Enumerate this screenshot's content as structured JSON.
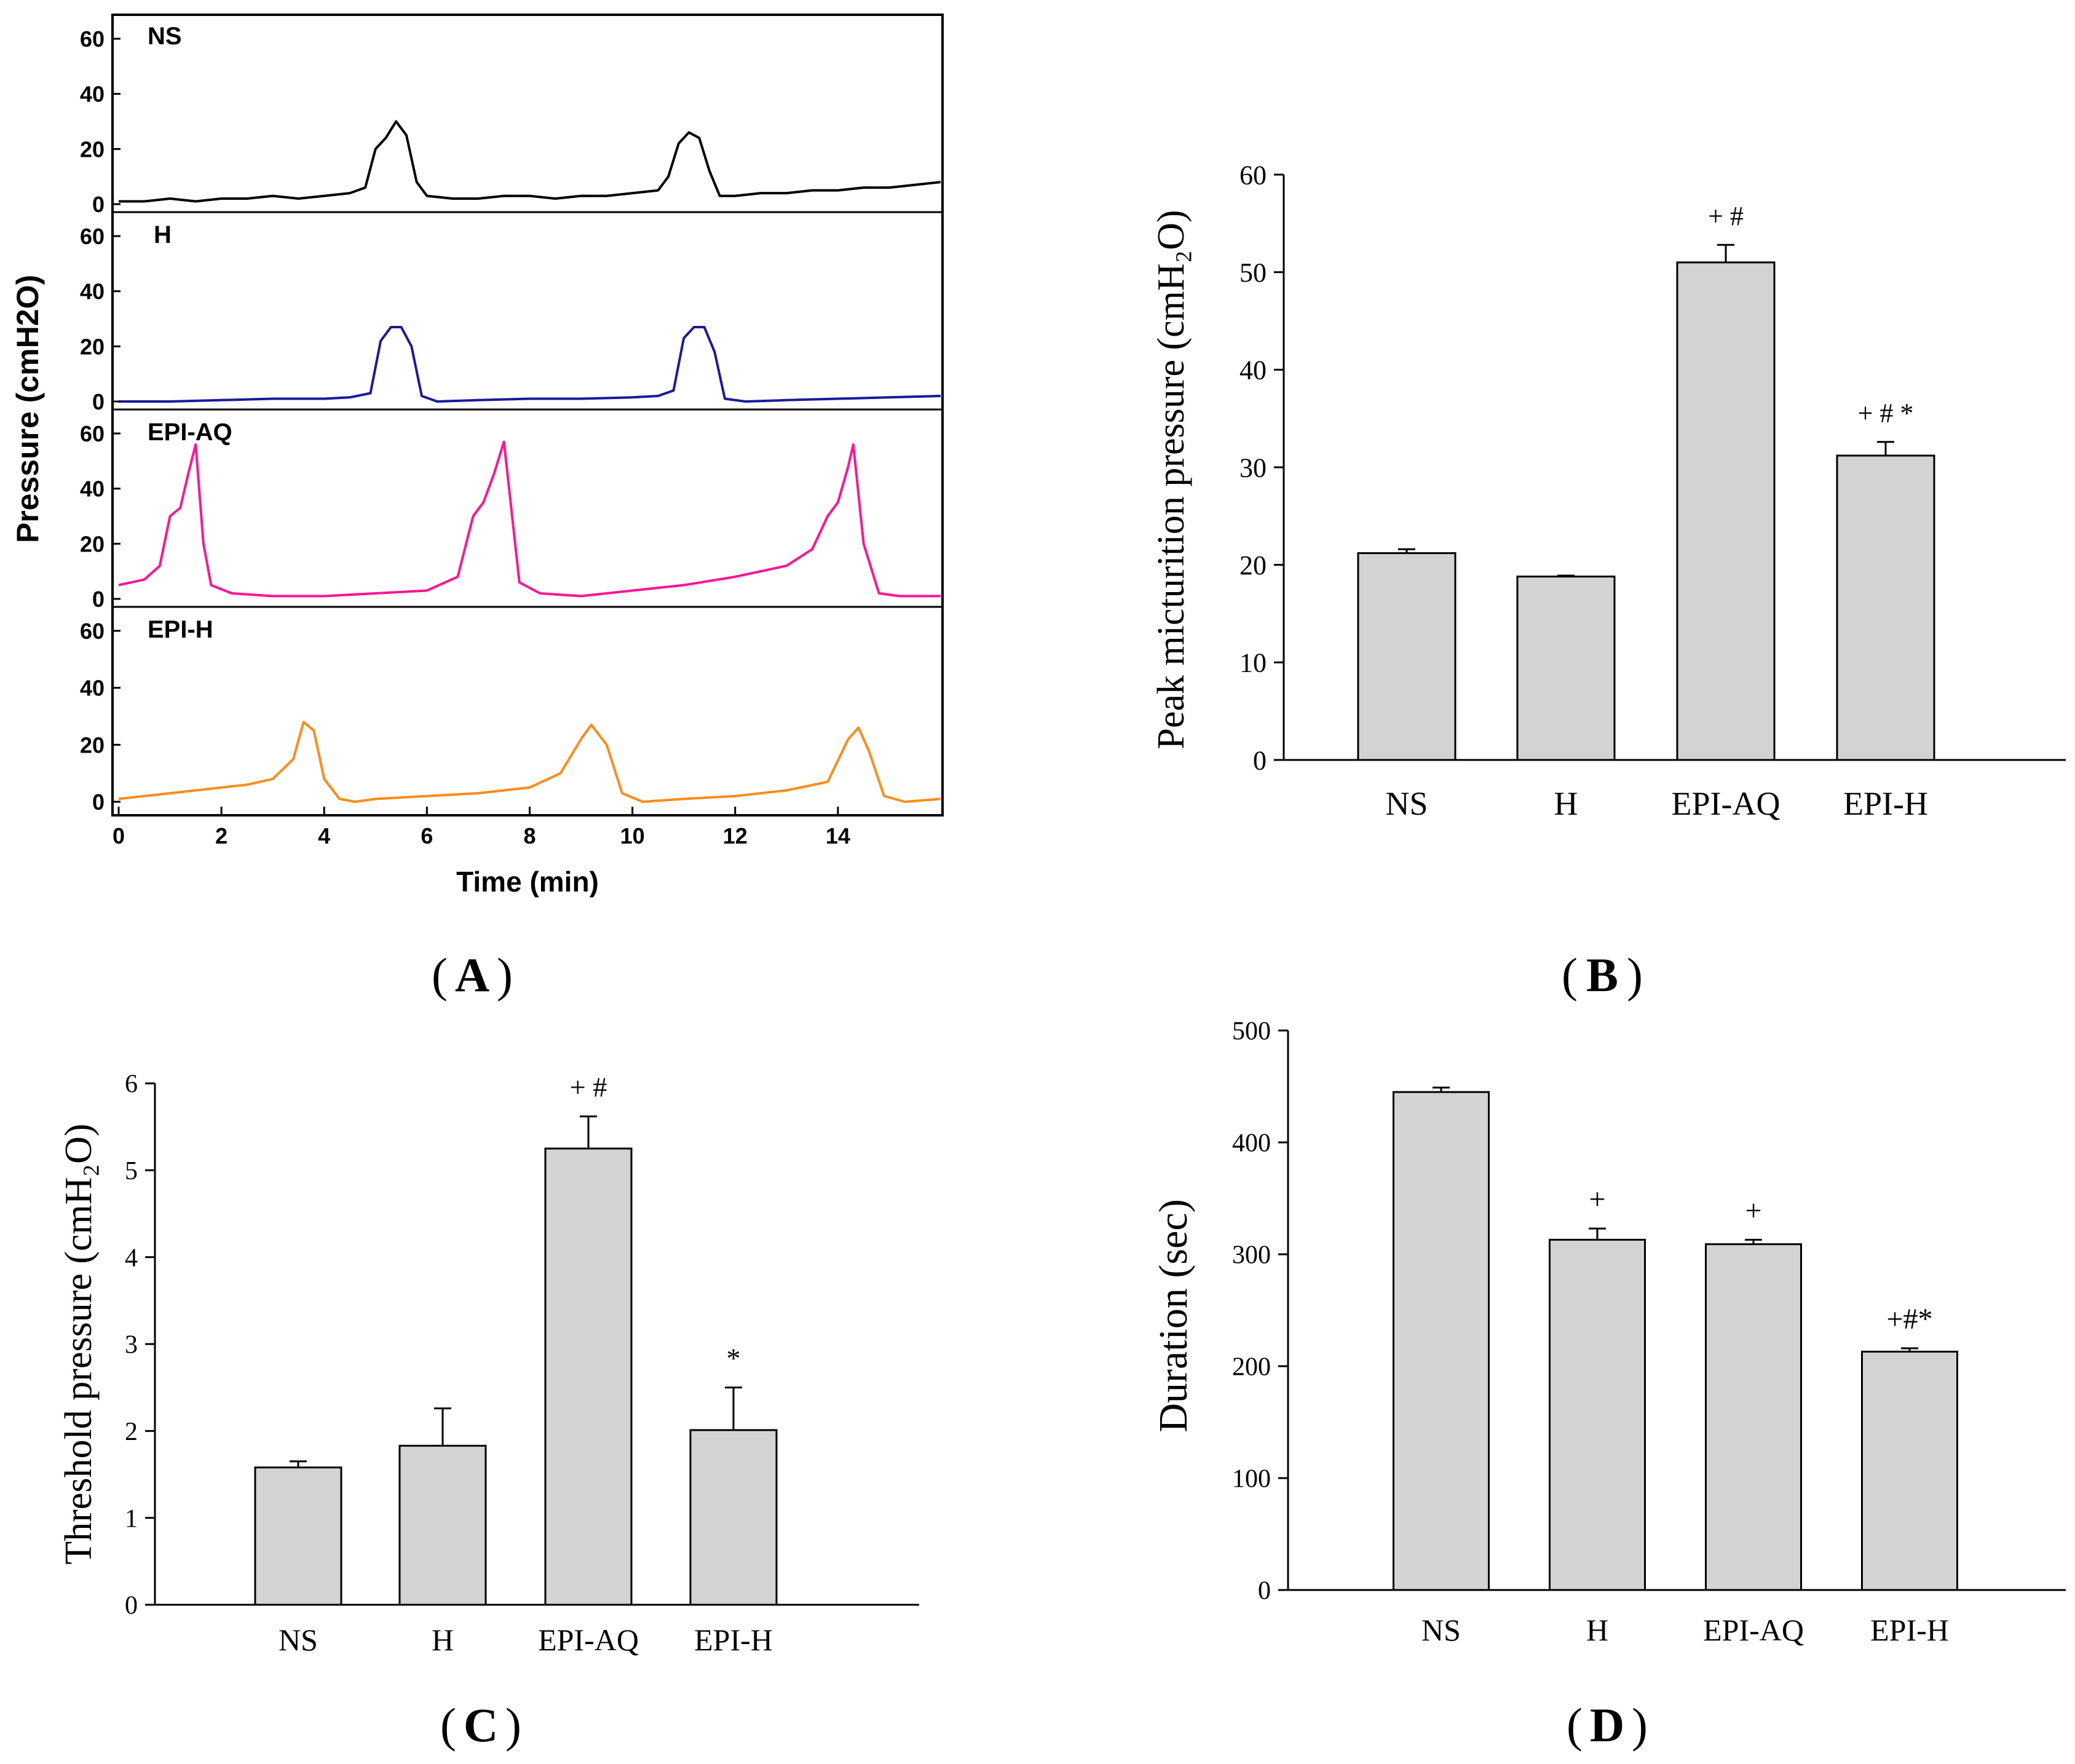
{
  "colors": {
    "axis": "#000000",
    "bar_fill": "#d3d3d3",
    "bar_stroke": "#000000",
    "trace_NS": "#000000",
    "trace_H": "#1a1a9a",
    "trace_EPI_AQ": "#ff1493",
    "trace_EPI_H": "#ff8c1a",
    "background": "#ffffff"
  },
  "panel_labels": {
    "A": "A",
    "B": "B",
    "C": "C",
    "D": "D"
  },
  "chart_data": [
    {
      "id": "A",
      "type": "line",
      "title": "",
      "xlabel": "Time (min)",
      "ylabel": "Pressure (cmH2O)",
      "xlim": [
        0,
        16
      ],
      "xticks": [
        "0",
        "2",
        "4",
        "6",
        "8",
        "10",
        "12",
        "14"
      ],
      "yticks": [
        "0",
        "20",
        "40",
        "60"
      ],
      "ylim": [
        0,
        65
      ],
      "grid": false,
      "series": [
        {
          "name": "NS",
          "color": "#000000",
          "x": [
            0,
            0.5,
            1,
            1.5,
            2,
            2.5,
            3,
            3.5,
            4,
            4.5,
            4.8,
            5.0,
            5.2,
            5.4,
            5.6,
            5.8,
            6.0,
            6.5,
            7,
            7.5,
            8,
            8.5,
            9,
            9.5,
            10,
            10.5,
            10.7,
            10.9,
            11.1,
            11.3,
            11.5,
            11.7,
            12,
            12.5,
            13,
            13.5,
            14,
            14.5,
            15,
            15.5,
            16
          ],
          "values": [
            1,
            1,
            2,
            1,
            2,
            2,
            3,
            2,
            3,
            4,
            6,
            20,
            24,
            30,
            25,
            8,
            3,
            2,
            2,
            3,
            3,
            2,
            3,
            3,
            4,
            5,
            10,
            22,
            26,
            24,
            12,
            3,
            3,
            4,
            4,
            5,
            5,
            6,
            6,
            7,
            8
          ]
        },
        {
          "name": "H",
          "color": "#1a1a9a",
          "x": [
            0,
            1,
            2,
            3,
            4,
            4.5,
            4.9,
            5.1,
            5.3,
            5.5,
            5.7,
            5.9,
            6.2,
            7,
            8,
            9,
            10,
            10.5,
            10.8,
            11.0,
            11.2,
            11.4,
            11.6,
            11.8,
            12.2,
            13,
            14,
            15,
            16
          ],
          "values": [
            0,
            0,
            0.5,
            1,
            1,
            1.5,
            3,
            22,
            27,
            27,
            20,
            2,
            0,
            0.5,
            1,
            1,
            1.5,
            2,
            4,
            23,
            27,
            27,
            18,
            1,
            0,
            0.5,
            1,
            1.5,
            2
          ]
        },
        {
          "name": "EPI-AQ",
          "color": "#ff1493",
          "x": [
            0,
            0.5,
            0.8,
            1.0,
            1.2,
            1.35,
            1.5,
            1.65,
            1.8,
            2.2,
            3,
            4,
            5,
            6,
            6.6,
            6.9,
            7.1,
            7.3,
            7.5,
            7.6,
            7.8,
            8.2,
            9,
            10,
            11,
            12,
            13,
            13.5,
            13.8,
            14.0,
            14.2,
            14.3,
            14.5,
            14.8,
            15.2,
            16
          ],
          "values": [
            5,
            7,
            12,
            30,
            33,
            45,
            56,
            20,
            5,
            2,
            1,
            1,
            2,
            3,
            8,
            30,
            35,
            45,
            57,
            40,
            6,
            2,
            1,
            3,
            5,
            8,
            12,
            18,
            30,
            35,
            48,
            56,
            20,
            2,
            1,
            1
          ]
        },
        {
          "name": "EPI-H",
          "color": "#ff8c1a",
          "x": [
            0,
            0.5,
            1,
            1.5,
            2,
            2.5,
            3,
            3.4,
            3.6,
            3.8,
            4.0,
            4.3,
            4.6,
            5,
            6,
            7,
            8,
            8.6,
            9.0,
            9.2,
            9.5,
            9.8,
            10.2,
            11,
            12,
            13,
            13.8,
            14.2,
            14.4,
            14.6,
            14.9,
            15.3,
            16
          ],
          "values": [
            1,
            2,
            3,
            4,
            5,
            6,
            8,
            15,
            28,
            25,
            8,
            1,
            0,
            1,
            2,
            3,
            5,
            10,
            22,
            27,
            20,
            3,
            0,
            1,
            2,
            4,
            7,
            22,
            26,
            18,
            2,
            0,
            1
          ]
        }
      ]
    },
    {
      "id": "B",
      "type": "bar",
      "title": "",
      "xlabel": "",
      "ylabel": "Peak micturition pressure (cmH₂O)",
      "categories": [
        "NS",
        "H",
        "EPI-AQ",
        "EPI-H"
      ],
      "values": [
        21.2,
        18.8,
        51.0,
        31.2
      ],
      "errors": [
        0.4,
        0.1,
        1.8,
        1.4
      ],
      "annotations": [
        "",
        "",
        "+ #",
        "+ # *"
      ],
      "ylim": [
        0,
        60
      ],
      "yticks": [
        "0",
        "10",
        "20",
        "30",
        "40",
        "50",
        "60"
      ],
      "grid": false
    },
    {
      "id": "C",
      "type": "bar",
      "title": "",
      "xlabel": "",
      "ylabel": "Threshold pressure (cmH₂O)",
      "categories": [
        "NS",
        "H",
        "EPI-AQ",
        "EPI-H"
      ],
      "values": [
        1.58,
        1.83,
        5.25,
        2.01
      ],
      "errors": [
        0.07,
        0.43,
        0.37,
        0.49
      ],
      "annotations": [
        "",
        "",
        "+ #",
        "*"
      ],
      "ylim": [
        0,
        6
      ],
      "yticks": [
        "0",
        "1",
        "2",
        "3",
        "4",
        "5",
        "6"
      ],
      "grid": false
    },
    {
      "id": "D",
      "type": "bar",
      "title": "",
      "xlabel": "",
      "ylabel": "Duration (sec)",
      "categories": [
        "NS",
        "H",
        "EPI-AQ",
        "EPI-H"
      ],
      "values": [
        445,
        313,
        309,
        213
      ],
      "errors": [
        4,
        10,
        4,
        3
      ],
      "annotations": [
        "",
        "+",
        "+",
        "+#*"
      ],
      "ylim": [
        0,
        500
      ],
      "yticks": [
        "0",
        "100",
        "200",
        "300",
        "400",
        "500"
      ],
      "grid": false
    }
  ]
}
